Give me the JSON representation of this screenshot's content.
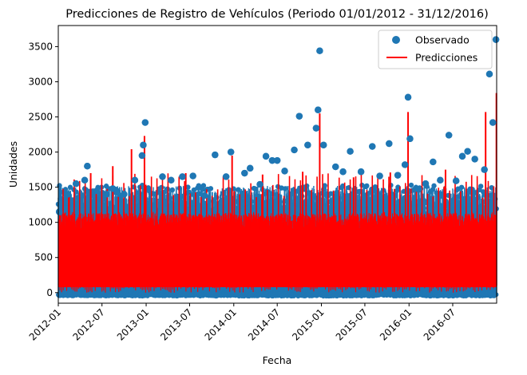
{
  "chart_data": {
    "type": "scatter",
    "title": "Predicciones de Registro de Vehículos (Periodo 01/01/2012 - 31/12/2016)",
    "xlabel": "Fecha",
    "ylabel": "Unidades",
    "xlim": [
      "2012-01-01",
      "2016-12-31"
    ],
    "ylim": [
      -150,
      3800
    ],
    "x_ticks": [
      "2012-01",
      "2012-07",
      "2013-01",
      "2013-07",
      "2014-01",
      "2014-07",
      "2015-01",
      "2015-07",
      "2016-01",
      "2016-07"
    ],
    "y_ticks": [
      0,
      500,
      1000,
      1500,
      2000,
      2500,
      3000,
      3500
    ],
    "legend": {
      "position": "top-right",
      "entries": [
        "Observado",
        "Predicciones"
      ]
    },
    "grid": false,
    "colors": {
      "observado": "#1f77b4",
      "predicciones": "#ff0000"
    },
    "series": [
      {
        "name": "Observado",
        "kind": "scatter",
        "points": [
          {
            "x": "2012-01-05",
            "y": 1150
          },
          {
            "x": "2012-02-10",
            "y": 1400
          },
          {
            "x": "2012-03-15",
            "y": 1550
          },
          {
            "x": "2012-04-20",
            "y": 1600
          },
          {
            "x": "2012-05-01",
            "y": 1800
          },
          {
            "x": "2012-06-10",
            "y": 1450
          },
          {
            "x": "2012-07-20",
            "y": 1400
          },
          {
            "x": "2012-08-15",
            "y": 1480
          },
          {
            "x": "2012-10-01",
            "y": 1400
          },
          {
            "x": "2012-11-15",
            "y": 1600
          },
          {
            "x": "2012-12-15",
            "y": 1950
          },
          {
            "x": "2012-12-20",
            "y": 2100
          },
          {
            "x": "2012-12-28",
            "y": 2420
          },
          {
            "x": "2013-03-10",
            "y": 1650
          },
          {
            "x": "2013-04-15",
            "y": 1600
          },
          {
            "x": "2013-06-01",
            "y": 1650
          },
          {
            "x": "2013-07-15",
            "y": 1660
          },
          {
            "x": "2013-09-01",
            "y": 1380
          },
          {
            "x": "2013-10-15",
            "y": 1960
          },
          {
            "x": "2013-11-30",
            "y": 1650
          },
          {
            "x": "2013-12-20",
            "y": 2000
          },
          {
            "x": "2014-02-15",
            "y": 1700
          },
          {
            "x": "2014-03-10",
            "y": 1770
          },
          {
            "x": "2014-04-20",
            "y": 1540
          },
          {
            "x": "2014-05-15",
            "y": 1940
          },
          {
            "x": "2014-06-10",
            "y": 1880
          },
          {
            "x": "2014-07-01",
            "y": 1880
          },
          {
            "x": "2014-08-01",
            "y": 1730
          },
          {
            "x": "2014-09-10",
            "y": 2030
          },
          {
            "x": "2014-10-01",
            "y": 2510
          },
          {
            "x": "2014-11-05",
            "y": 2100
          },
          {
            "x": "2014-12-10",
            "y": 2340
          },
          {
            "x": "2014-12-18",
            "y": 2600
          },
          {
            "x": "2014-12-25",
            "y": 3440
          },
          {
            "x": "2015-01-10",
            "y": 2100
          },
          {
            "x": "2015-03-01",
            "y": 1790
          },
          {
            "x": "2015-04-01",
            "y": 1720
          },
          {
            "x": "2015-05-01",
            "y": 2010
          },
          {
            "x": "2015-06-15",
            "y": 1720
          },
          {
            "x": "2015-08-01",
            "y": 2080
          },
          {
            "x": "2015-09-01",
            "y": 1660
          },
          {
            "x": "2015-10-10",
            "y": 2120
          },
          {
            "x": "2015-11-15",
            "y": 1670
          },
          {
            "x": "2015-12-15",
            "y": 1820
          },
          {
            "x": "2015-12-28",
            "y": 2780
          },
          {
            "x": "2016-01-05",
            "y": 2190
          },
          {
            "x": "2016-02-10",
            "y": 1470
          },
          {
            "x": "2016-03-10",
            "y": 1550
          },
          {
            "x": "2016-04-10",
            "y": 1860
          },
          {
            "x": "2016-05-10",
            "y": 1600
          },
          {
            "x": "2016-06-15",
            "y": 2240
          },
          {
            "x": "2016-07-15",
            "y": 1590
          },
          {
            "x": "2016-08-10",
            "y": 1940
          },
          {
            "x": "2016-09-01",
            "y": 2010
          },
          {
            "x": "2016-10-01",
            "y": 1900
          },
          {
            "x": "2016-11-10",
            "y": 1750
          },
          {
            "x": "2016-12-01",
            "y": 3110
          },
          {
            "x": "2016-12-15",
            "y": 2420
          },
          {
            "x": "2016-12-28",
            "y": 3600
          }
        ]
      },
      {
        "name": "Predicciones",
        "kind": "line",
        "base_range": [
          0,
          1150
        ],
        "peaks": [
          {
            "x": "2012-02-15",
            "y": 1400
          },
          {
            "x": "2012-05-15",
            "y": 1700
          },
          {
            "x": "2012-08-15",
            "y": 1800
          },
          {
            "x": "2012-11-01",
            "y": 2040
          },
          {
            "x": "2012-12-25",
            "y": 2230
          },
          {
            "x": "2013-06-15",
            "y": 1700
          },
          {
            "x": "2013-12-25",
            "y": 1950
          },
          {
            "x": "2014-05-01",
            "y": 1680
          },
          {
            "x": "2014-10-15",
            "y": 1720
          },
          {
            "x": "2014-12-25",
            "y": 2550
          },
          {
            "x": "2015-05-15",
            "y": 1640
          },
          {
            "x": "2015-10-15",
            "y": 1710
          },
          {
            "x": "2015-12-28",
            "y": 2570
          },
          {
            "x": "2016-06-01",
            "y": 1750
          },
          {
            "x": "2016-11-15",
            "y": 2570
          },
          {
            "x": "2016-12-30",
            "y": 2840
          }
        ]
      }
    ]
  }
}
